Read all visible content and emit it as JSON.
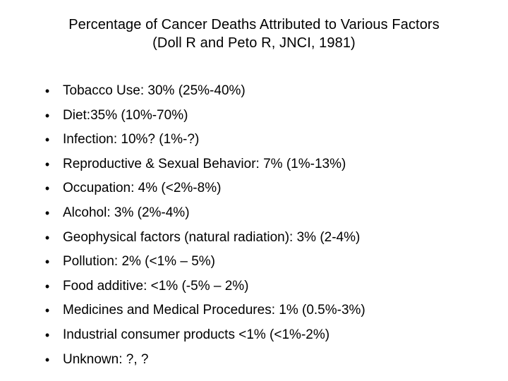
{
  "slide": {
    "title_line_1": "Percentage of Cancer Deaths Attributed to Various Factors",
    "title_line_2": "(Doll R and Peto R, JNCI, 1981)",
    "bullet_glyph": "•",
    "items": [
      "Tobacco Use: 30% (25%-40%)",
      "Diet:35% (10%-70%)",
      "Infection: 10%? (1%-?)",
      "Reproductive & Sexual Behavior: 7% (1%-13%)",
      "Occupation: 4% (<2%-8%)",
      "Alcohol: 3% (2%-4%)",
      "Geophysical factors (natural radiation): 3% (2-4%)",
      "Pollution: 2% (<1% – 5%)",
      "Food additive: <1% (-5% – 2%)",
      "Medicines and Medical Procedures: 1% (0.5%-3%)",
      "Industrial consumer products <1% (<1%-2%)",
      "Unknown: ?, ?"
    ]
  }
}
